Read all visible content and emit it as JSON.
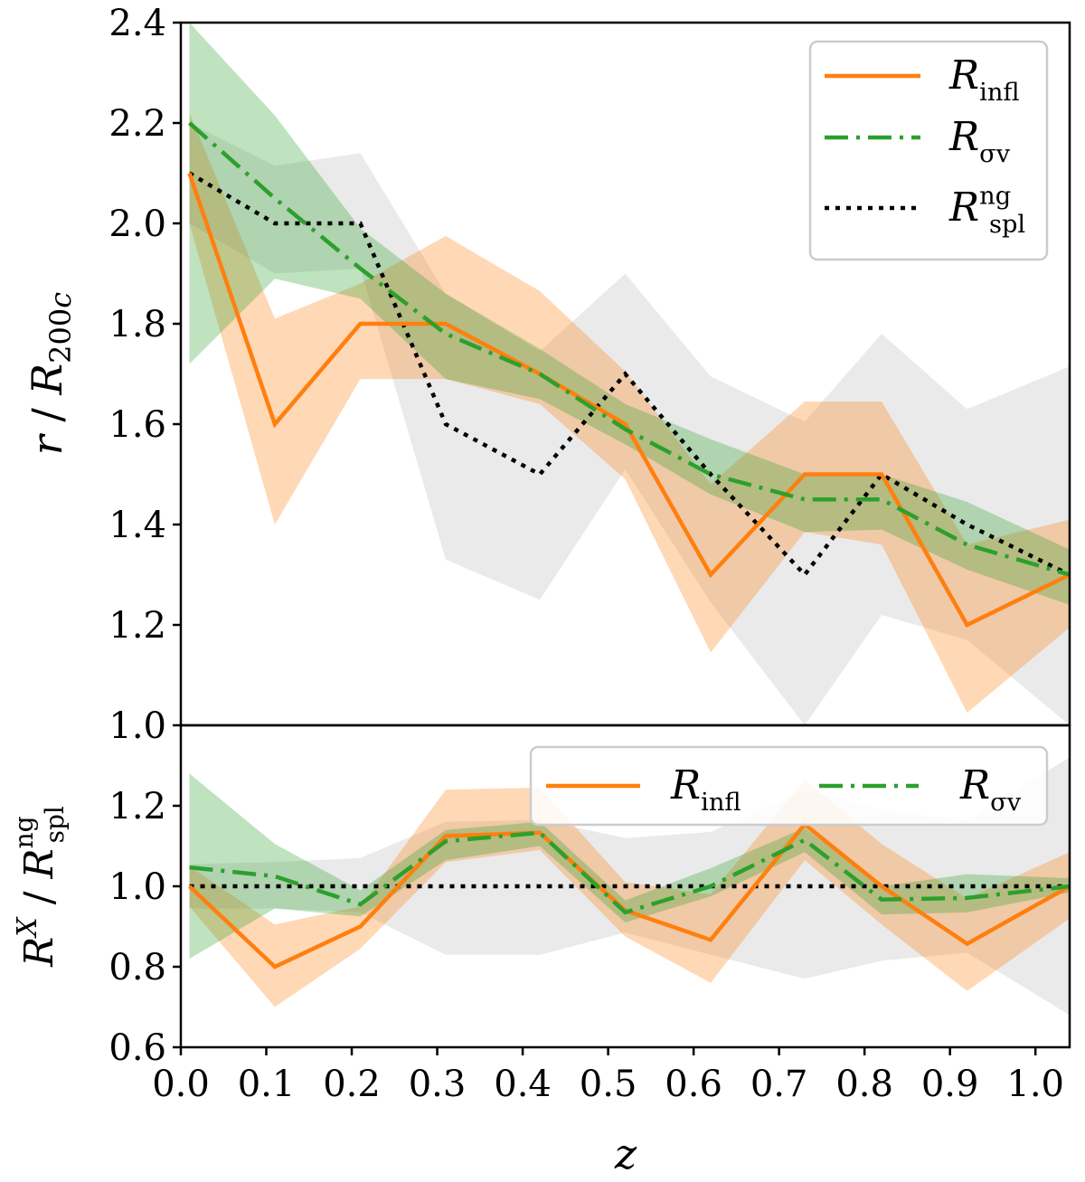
{
  "chart_data": [
    {
      "type": "line",
      "panel": "top",
      "xlabel": "",
      "ylabel": "r / R200c",
      "ylim": [
        1.0,
        2.4
      ],
      "xlim": [
        0.0,
        1.04
      ],
      "yticks": [
        "1.0",
        "1.2",
        "1.4",
        "1.6",
        "1.8",
        "2.0",
        "2.2",
        "2.4"
      ],
      "legend_position": "top-right",
      "series": [
        {
          "name": "R_infl",
          "legend_main": "R",
          "legend_sub": "infl",
          "legend_sup": "",
          "color": "#ff7f0e",
          "style": "solid",
          "x": [
            0.01,
            0.11,
            0.21,
            0.31,
            0.42,
            0.52,
            0.62,
            0.73,
            0.82,
            0.92,
            1.04
          ],
          "values": [
            2.1,
            1.6,
            1.8,
            1.8,
            1.7,
            1.6,
            1.3,
            1.5,
            1.5,
            1.2,
            1.3
          ],
          "band_low": [
            2.0,
            1.4,
            1.69,
            1.69,
            1.64,
            1.49,
            1.145,
            1.385,
            1.36,
            1.025,
            1.195
          ],
          "band_high": [
            2.22,
            1.81,
            1.88,
            1.975,
            1.865,
            1.705,
            1.48,
            1.645,
            1.645,
            1.36,
            1.41
          ]
        },
        {
          "name": "R_sigma_v",
          "legend_main": "R",
          "legend_sub": "σv",
          "legend_sup": "",
          "color": "#2ca02c",
          "style": "dashdot",
          "x": [
            0.01,
            0.11,
            0.21,
            0.31,
            0.42,
            0.52,
            0.62,
            0.73,
            0.82,
            0.92,
            1.04
          ],
          "values": [
            2.2,
            2.05,
            1.91,
            1.78,
            1.7,
            1.59,
            1.5,
            1.45,
            1.45,
            1.36,
            1.3
          ],
          "band_low": [
            1.72,
            1.89,
            1.85,
            1.69,
            1.65,
            1.56,
            1.46,
            1.385,
            1.39,
            1.31,
            1.24
          ],
          "band_high": [
            2.4,
            2.215,
            1.99,
            1.86,
            1.75,
            1.64,
            1.57,
            1.5,
            1.5,
            1.445,
            1.35
          ]
        },
        {
          "name": "R_spl_ng",
          "legend_main": "R",
          "legend_sub": "spl",
          "legend_sup": "ng",
          "color": "#000000",
          "style": "dotted",
          "x": [
            0.01,
            0.11,
            0.21,
            0.31,
            0.42,
            0.52,
            0.62,
            0.73,
            0.82,
            0.92,
            1.04
          ],
          "values": [
            2.1,
            2.0,
            2.0,
            1.6,
            1.5,
            1.7,
            1.5,
            1.3,
            1.5,
            1.4,
            1.3
          ],
          "band_low": [
            2.0,
            1.9,
            1.91,
            1.33,
            1.25,
            1.51,
            1.245,
            1.0,
            1.22,
            1.17,
            1.0
          ],
          "band_high": [
            2.2,
            2.115,
            2.14,
            1.86,
            1.745,
            1.9,
            1.695,
            1.605,
            1.78,
            1.63,
            1.715
          ]
        }
      ]
    },
    {
      "type": "line",
      "panel": "bottom",
      "xlabel": "z",
      "ylabel": "R^X / R_spl^ng",
      "ylim": [
        0.6,
        1.4
      ],
      "xlim": [
        0.0,
        1.04
      ],
      "yticks": [
        "0.6",
        "0.8",
        "1.0",
        "1.2"
      ],
      "xticks": [
        "0.0",
        "0.1",
        "0.2",
        "0.3",
        "0.4",
        "0.5",
        "0.6",
        "0.7",
        "0.8",
        "0.9",
        "1.0"
      ],
      "legend_position": "top-right",
      "series": [
        {
          "name": "R_infl",
          "legend_main": "R",
          "legend_sub": "infl",
          "color": "#ff7f0e",
          "style": "solid",
          "x": [
            0.01,
            0.11,
            0.21,
            0.31,
            0.42,
            0.52,
            0.62,
            0.73,
            0.82,
            0.92,
            1.04
          ],
          "values": [
            1.0,
            0.8,
            0.9,
            1.125,
            1.133,
            0.94,
            0.867,
            1.154,
            1.0,
            0.857,
            1.0
          ],
          "band_low": [
            0.95,
            0.7,
            0.845,
            1.06,
            1.09,
            0.875,
            0.76,
            1.065,
            0.905,
            0.74,
            0.92
          ],
          "band_high": [
            1.05,
            0.905,
            0.95,
            1.24,
            1.245,
            1.01,
            0.98,
            1.265,
            1.105,
            0.97,
            1.085
          ]
        },
        {
          "name": "R_sigma_v",
          "legend_main": "R",
          "legend_sub": "σv",
          "color": "#2ca02c",
          "style": "dashdot",
          "x": [
            0.01,
            0.11,
            0.21,
            0.31,
            0.42,
            0.52,
            0.62,
            0.73,
            0.82,
            0.92,
            1.04
          ],
          "values": [
            1.047,
            1.025,
            0.955,
            1.112,
            1.133,
            0.935,
            1.0,
            1.115,
            0.967,
            0.971,
            1.0
          ],
          "band_low": [
            0.82,
            0.945,
            0.925,
            1.065,
            1.1,
            0.91,
            0.975,
            1.085,
            0.93,
            0.935,
            0.985
          ],
          "band_high": [
            1.28,
            1.105,
            0.99,
            1.14,
            1.16,
            0.965,
            1.045,
            1.145,
            1.0,
            1.03,
            1.02
          ]
        },
        {
          "name": "R_spl_ng",
          "legend_main": "",
          "legend_sub": "",
          "color": "#000000",
          "style": "dotted",
          "x": [
            0.01,
            0.11,
            0.21,
            0.31,
            0.42,
            0.52,
            0.62,
            0.73,
            0.82,
            0.92,
            1.04
          ],
          "values": [
            1.0,
            1.0,
            1.0,
            1.0,
            1.0,
            1.0,
            1.0,
            1.0,
            1.0,
            1.0,
            1.0
          ],
          "band_low": [
            0.945,
            0.945,
            0.935,
            0.83,
            0.83,
            0.885,
            0.83,
            0.77,
            0.815,
            0.835,
            0.68
          ],
          "band_high": [
            1.055,
            1.06,
            1.07,
            1.16,
            1.165,
            1.12,
            1.135,
            1.24,
            1.19,
            1.165,
            1.32
          ]
        }
      ]
    }
  ]
}
